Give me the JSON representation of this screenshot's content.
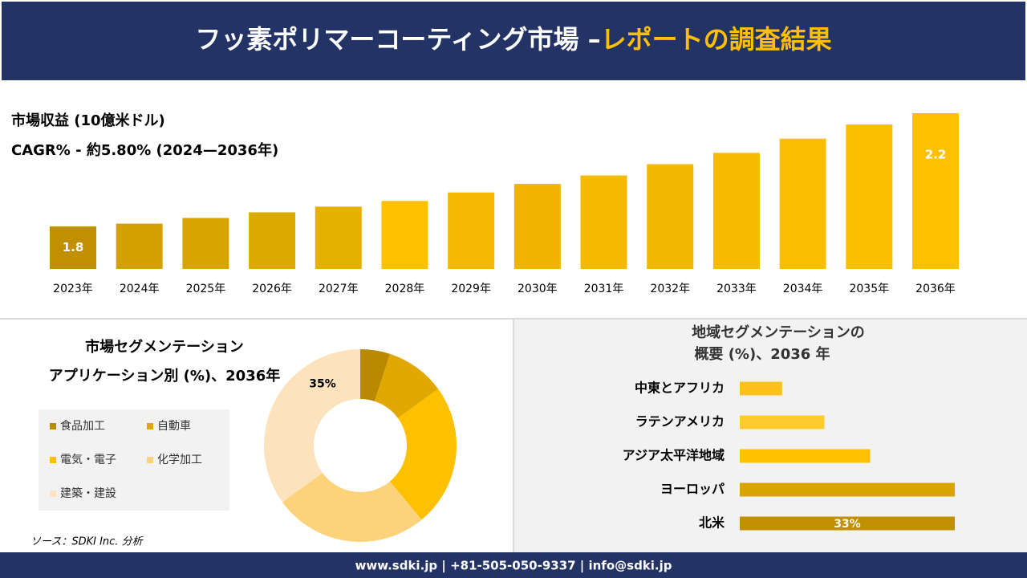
{
  "header": {
    "title": "フッ素ポリマーコーティング市場 –",
    "title_highlight": "レポートの調査結果"
  },
  "footer": "www.sdki.jp | +81-505-050-9337 | info@sdki.jp",
  "source": "ソース：SDKI Inc. 分析",
  "chart_data": [
    {
      "type": "bar",
      "title": "市場収益 (10億米ドル)",
      "subtitle": "CAGR% - 約5.80% (2024—2036年)",
      "categories": [
        "2023年",
        "2024年",
        "2025年",
        "2026年",
        "2027年",
        "2028年",
        "2029年",
        "2030年",
        "2031年",
        "2032年",
        "2033年",
        "2034年",
        "2035年",
        "2036年"
      ],
      "values": [
        1.8,
        1.81,
        1.83,
        1.85,
        1.87,
        1.89,
        1.92,
        1.95,
        1.98,
        2.02,
        2.06,
        2.11,
        2.16,
        2.2
      ],
      "value_labels": [
        "1.8",
        null,
        null,
        null,
        null,
        null,
        null,
        null,
        null,
        null,
        null,
        null,
        null,
        "2.2"
      ],
      "colors": [
        "#c09000",
        "#d4a200",
        "#d8a500",
        "#ddaa00",
        "#e6b000",
        "#ffc000",
        "#f5b800",
        "#f0b400",
        "#f5b900",
        "#f2b700",
        "#f7bb00",
        "#fabd00",
        "#fcbf00",
        "#ffc000"
      ],
      "ylim": [
        1.65,
        2.2
      ]
    },
    {
      "type": "pie",
      "title": "市場セグメンテーション",
      "subtitle": "アプリケーション別 (%)、2036年",
      "categories": [
        "食品加工",
        "自動車",
        "電気・電子",
        "化学加工",
        "建築・建設"
      ],
      "values": [
        5,
        10,
        24,
        26,
        35
      ],
      "value_labels": [
        null,
        null,
        null,
        null,
        "35%"
      ],
      "colors": [
        "#b98900",
        "#e0a800",
        "#ffc000",
        "#fcd27a",
        "#fde3bd"
      ],
      "donut": true
    },
    {
      "type": "bar",
      "orientation": "horizontal",
      "title": "地域セグメンテーションの",
      "subtitle": "概要 (%)、2036 年",
      "categories": [
        "中東とアフリカ",
        "ラテンアメリカ",
        "アジア太平洋地域",
        "ヨーロッパ",
        "北米"
      ],
      "values": [
        6.5,
        13,
        20,
        33,
        33
      ],
      "value_labels": [
        null,
        null,
        null,
        null,
        "33%"
      ],
      "colors": [
        "#fcc21b",
        "#ffca2c",
        "#ffc000",
        "#d9a400",
        "#c09000"
      ],
      "xlim": [
        0,
        33
      ]
    }
  ]
}
